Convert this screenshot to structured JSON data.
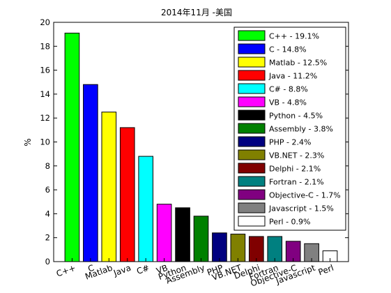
{
  "chart_data": {
    "type": "bar",
    "title": "2014年11月 -美国",
    "xlabel": "",
    "ylabel": "%",
    "ylim": [
      0,
      20
    ],
    "yticks": [
      0,
      2,
      4,
      6,
      8,
      10,
      12,
      14,
      16,
      18,
      20
    ],
    "grid": false,
    "legend_position": "top-right",
    "categories": [
      "C++",
      "C",
      "Matlab",
      "Java",
      "C#",
      "VB",
      "Python",
      "Assembly",
      "PHP",
      "VB.NET",
      "Delphi",
      "Fortran",
      "Objective-C",
      "Javascript",
      "Perl"
    ],
    "values": [
      19.1,
      14.8,
      12.5,
      11.2,
      8.8,
      4.8,
      4.5,
      3.8,
      2.4,
      2.3,
      2.1,
      2.1,
      1.7,
      1.5,
      0.9
    ],
    "colors": [
      "#00ff00",
      "#0000ff",
      "#ffff00",
      "#ff0000",
      "#00ffff",
      "#ff00ff",
      "#000000",
      "#008000",
      "#000080",
      "#808000",
      "#800000",
      "#008080",
      "#800080",
      "#808080",
      "#ffffff"
    ],
    "legend": [
      "C++ - 19.1%",
      "C - 14.8%",
      "Matlab - 12.5%",
      "Java - 11.2%",
      "C# - 8.8%",
      "VB - 4.8%",
      "Python - 4.5%",
      "Assembly - 3.8%",
      "PHP - 2.4%",
      "VB.NET - 2.3%",
      "Delphi - 2.1%",
      "Fortran - 2.1%",
      "Objective-C - 1.7%",
      "Javascript - 1.5%",
      "Perl - 0.9%"
    ]
  }
}
